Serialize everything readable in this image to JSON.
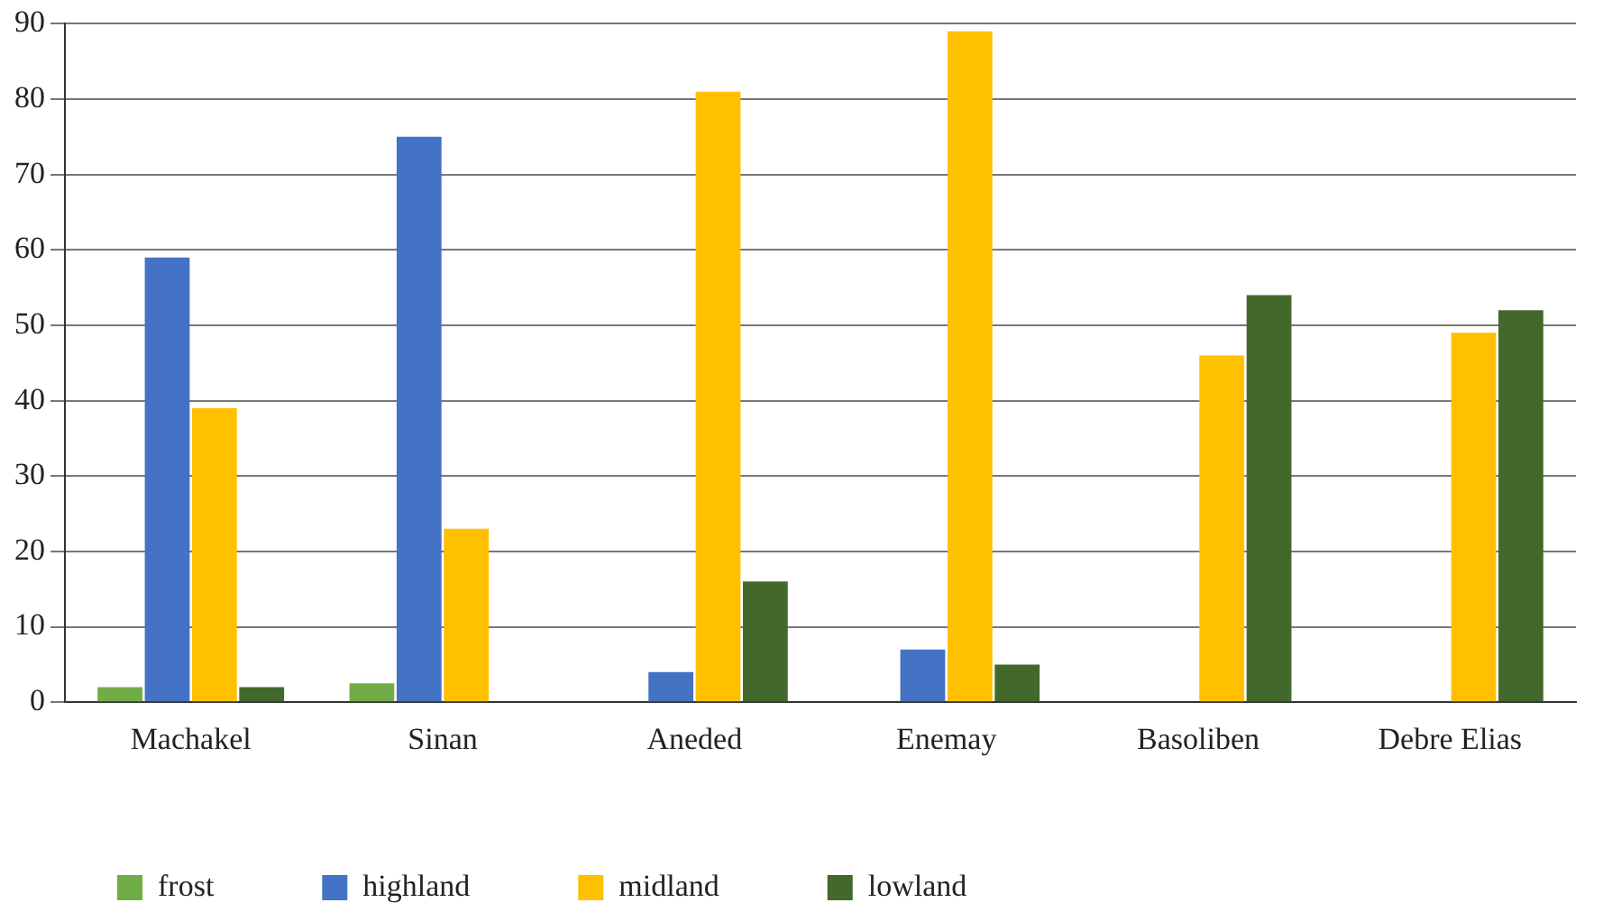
{
  "chart_data": {
    "type": "bar",
    "categories": [
      "Machakel",
      "Sinan",
      "Aneded",
      "Enemay",
      "Basoliben",
      "Debre Elias"
    ],
    "series": [
      {
        "name": "frost",
        "color": "#70ad47",
        "values": [
          2,
          2.5,
          0,
          0,
          0,
          0
        ]
      },
      {
        "name": "highland",
        "color": "#4472c4",
        "values": [
          59,
          75,
          4,
          7,
          0,
          0
        ]
      },
      {
        "name": "midland",
        "color": "#ffc000",
        "values": [
          39,
          23,
          81,
          89,
          46,
          49
        ]
      },
      {
        "name": "lowland",
        "color": "#43682b",
        "values": [
          2,
          0,
          16,
          5,
          54,
          52
        ]
      }
    ],
    "ylim": [
      0,
      90
    ],
    "yticks": [
      0,
      10,
      20,
      30,
      40,
      50,
      60,
      70,
      80,
      90
    ],
    "grid": "y",
    "legend": "bottom"
  }
}
